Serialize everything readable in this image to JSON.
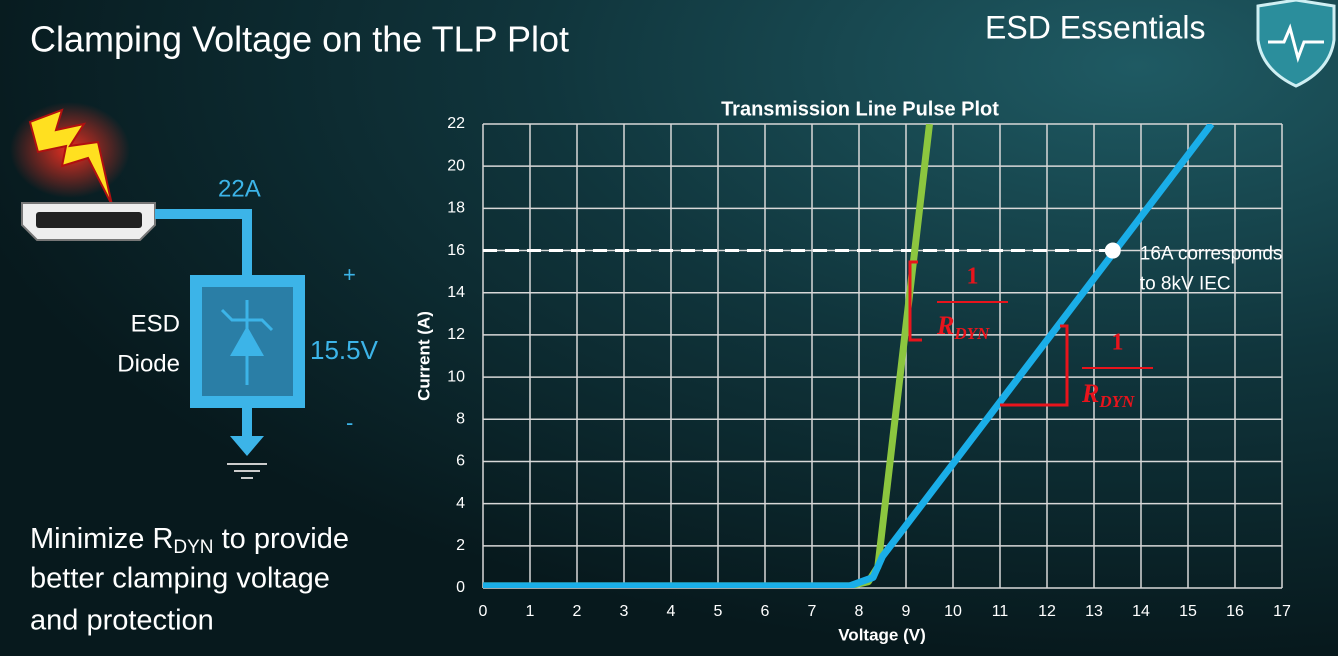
{
  "slide": {
    "title": "Clamping Voltage on the TLP Plot",
    "brand": "ESD Essentials",
    "circuit": {
      "current": "22A",
      "device_line1": "ESD",
      "device_line2": "Diode",
      "voltage": "15.5V",
      "plus": "+",
      "minus": "-"
    },
    "summary": {
      "line1_start": "Minimize R",
      "line1_sub": "DYN",
      "line1_end": " to provide",
      "line2": "better clamping voltage",
      "line3": "and protection"
    }
  },
  "chart_data": {
    "type": "line",
    "title": "Transmission Line Pulse Plot",
    "x_label": "Voltage (V)",
    "y_label": "Current (A)",
    "xlim": [
      0,
      17
    ],
    "ylim": [
      0,
      22
    ],
    "xticks": [
      0,
      1,
      2,
      3,
      4,
      5,
      6,
      7,
      8,
      9,
      10,
      11,
      12,
      13,
      14,
      15,
      16,
      17
    ],
    "yticks": [
      0,
      2,
      4,
      6,
      8,
      10,
      12,
      14,
      16,
      18,
      20,
      22
    ],
    "grid": true,
    "series": [
      {
        "color": "#8cc63f",
        "x": [
          0,
          7.8,
          8.2,
          8.4,
          9.5
        ],
        "values": [
          0.1,
          0.1,
          0.3,
          1,
          22
        ]
      },
      {
        "color": "#1aaee8",
        "x": [
          0,
          7.8,
          8.3,
          8.5,
          15.5
        ],
        "values": [
          0.1,
          0.1,
          0.5,
          1.5,
          22
        ]
      }
    ],
    "highlight": {
      "x": 13.4,
      "y": 16,
      "text_line1": "16A corresponds",
      "text_line2": "to 8kV IEC"
    },
    "rdyn_labels": [
      {
        "numerator": "1",
        "symbol": "R",
        "subscript": "DYN"
      },
      {
        "numerator": "1",
        "symbol": "R",
        "subscript": "DYN"
      }
    ]
  }
}
